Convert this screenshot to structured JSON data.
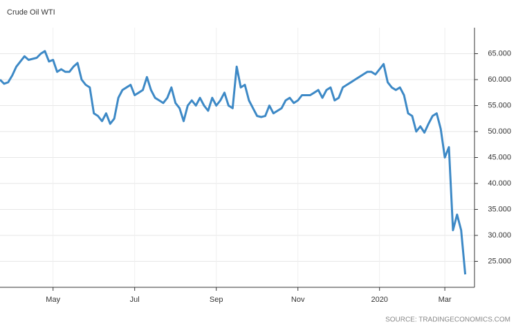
{
  "chart_data": {
    "type": "line",
    "title": "Crude Oil WTI",
    "source": "SOURCE: TRADINGECONOMICS.COM",
    "categories": [
      null,
      null,
      null,
      null,
      null,
      null,
      null,
      null,
      null,
      null,
      null,
      null,
      null,
      "May",
      null,
      null,
      null,
      null,
      null,
      null,
      null,
      null,
      null,
      null,
      null,
      null,
      null,
      null,
      null,
      null,
      null,
      null,
      null,
      "Jul",
      null,
      null,
      null,
      null,
      null,
      null,
      null,
      null,
      null,
      null,
      null,
      null,
      null,
      null,
      null,
      null,
      null,
      null,
      null,
      "Sep",
      null,
      null,
      null,
      null,
      null,
      null,
      null,
      null,
      null,
      null,
      null,
      null,
      null,
      null,
      null,
      null,
      null,
      null,
      null,
      "Nov",
      null,
      null,
      null,
      null,
      null,
      null,
      null,
      null,
      null,
      null,
      null,
      null,
      null,
      null,
      null,
      null,
      null,
      null,
      null,
      "2020",
      null,
      null,
      null,
      null,
      null,
      null,
      null,
      null,
      null,
      null,
      null,
      null,
      null,
      null,
      null,
      "Mar",
      null,
      null,
      null,
      null,
      null
    ],
    "values": [
      60.0,
      59.2,
      59.5,
      60.8,
      62.5,
      63.5,
      64.5,
      63.8,
      64.0,
      64.2,
      65.0,
      65.5,
      63.5,
      63.8,
      61.5,
      62.0,
      61.5,
      61.5,
      62.5,
      63.2,
      60.0,
      59.0,
      58.5,
      53.5,
      53.0,
      52.0,
      53.5,
      51.5,
      52.5,
      56.5,
      58.0,
      58.5,
      59.0,
      57.0,
      57.5,
      58.0,
      60.5,
      58.0,
      56.5,
      56.0,
      55.5,
      56.5,
      58.5,
      55.5,
      54.5,
      52.0,
      55.0,
      56.0,
      55.0,
      56.5,
      55.0,
      54.0,
      56.5,
      55.0,
      56.0,
      57.5,
      55.0,
      54.5,
      62.5,
      58.5,
      59.0,
      56.0,
      54.5,
      53.0,
      52.8,
      53.0,
      55.0,
      53.5,
      54.0,
      54.5,
      56.0,
      56.5,
      55.5,
      56.0,
      57.0,
      57.0,
      57.0,
      57.5,
      58.0,
      56.5,
      58.0,
      58.5,
      56.0,
      56.5,
      58.5,
      59.0,
      59.5,
      60.0,
      60.5,
      61.0,
      61.5,
      61.5,
      61.0,
      62.0,
      63.0,
      59.5,
      58.5,
      58.0,
      58.5,
      57.0,
      53.5,
      53.0,
      50.0,
      51.0,
      49.8,
      51.5,
      53.0,
      53.5,
      50.5,
      45.0,
      47.0,
      31.0,
      34.0,
      31.0,
      22.5
    ],
    "color": "#3d89c6",
    "ylim": [
      20,
      70
    ],
    "yticks": [
      {
        "value": 25,
        "label": "25.000"
      },
      {
        "value": 30,
        "label": "30.000"
      },
      {
        "value": 35,
        "label": "35.000"
      },
      {
        "value": 40,
        "label": "40.000"
      },
      {
        "value": 45,
        "label": "45.000"
      },
      {
        "value": 50,
        "label": "50.000"
      },
      {
        "value": 55,
        "label": "55.000"
      },
      {
        "value": 60,
        "label": "60.000"
      },
      {
        "value": 65,
        "label": "65.000"
      }
    ],
    "grid": true
  }
}
